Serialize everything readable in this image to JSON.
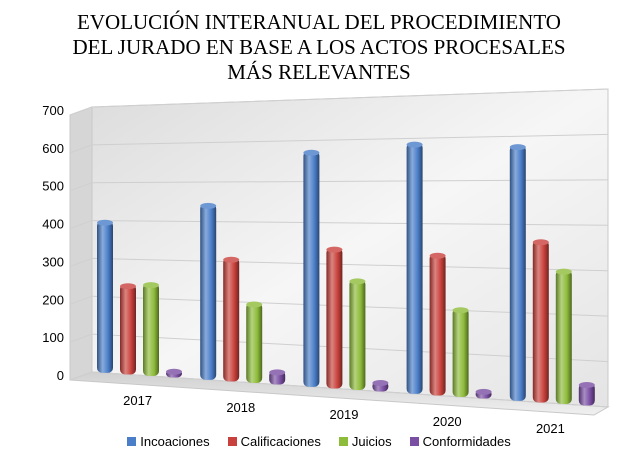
{
  "chart_data": {
    "type": "bar",
    "title_lines": [
      "EVOLUCIÓN INTERANUAL DEL PROCEDIMIENTO",
      "DEL JURADO EN BASE A LOS ACTOS PROCESALES",
      "MÁS RELEVANTES"
    ],
    "categories": [
      "2017",
      "2018",
      "2019",
      "2020",
      "2021"
    ],
    "series": [
      {
        "name": "Incoaciones",
        "color": "#4a7ec9",
        "values": [
          400,
          445,
          575,
          590,
          580
        ]
      },
      {
        "name": "Calificaciones",
        "color": "#c9413c",
        "values": [
          235,
          310,
          340,
          330,
          365
        ]
      },
      {
        "name": "Juicios",
        "color": "#8dbb3a",
        "values": [
          240,
          200,
          265,
          205,
          300
        ]
      },
      {
        "name": "Conformidades",
        "color": "#7a4fa3",
        "values": [
          20,
          35,
          25,
          20,
          50
        ]
      }
    ],
    "y_ticks": [
      "0",
      "100",
      "200",
      "300",
      "400",
      "500",
      "600",
      "700"
    ],
    "ylim": [
      0,
      700
    ],
    "grid": true,
    "legend_position": "bottom",
    "style": "3d-column"
  }
}
